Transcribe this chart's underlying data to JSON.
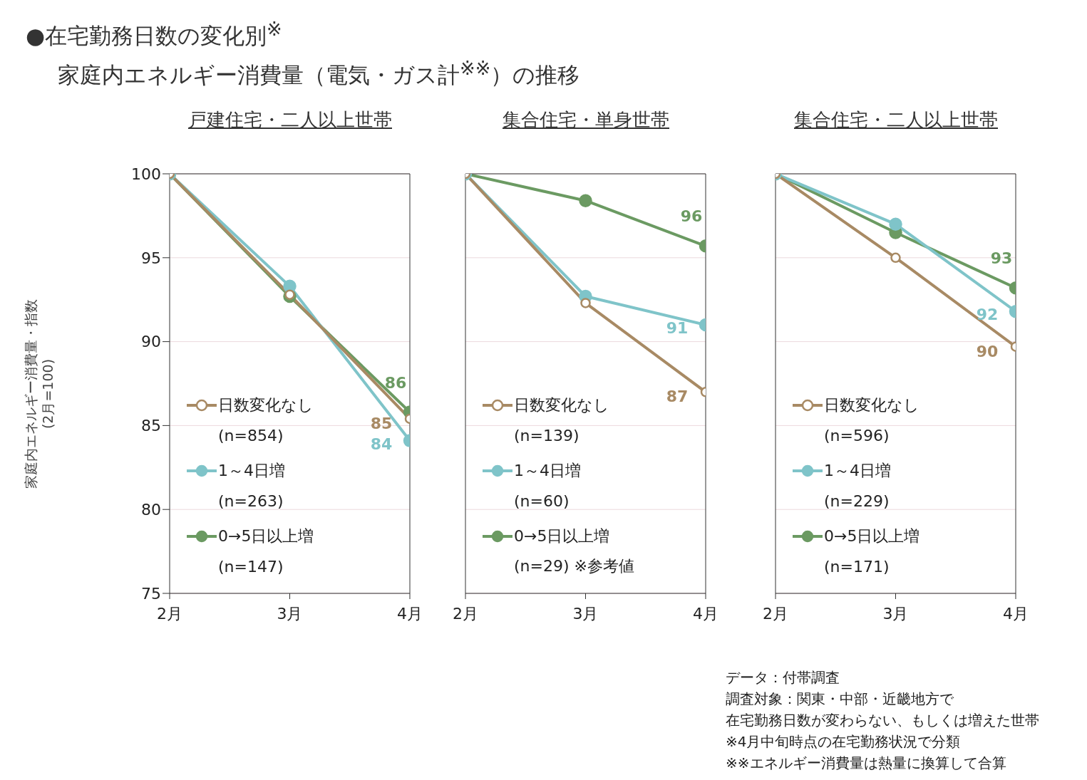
{
  "chart_data": [
    {
      "type": "line",
      "title": "●在宅勤務日数の変化別$^{※}$\n家庭内エネルギー消費量（電気・ガス計$^{※※}$）の推移",
      "subtitle": "戸建住宅・二人以上世帯",
      "ylabel": "家庭内エネルギー消費量・指数\n(2月=100)",
      "categories": [
        "2月",
        "3月",
        "4月"
      ],
      "ylim": [
        75,
        100
      ],
      "yticks": [
        75,
        80,
        85,
        90,
        95,
        100
      ],
      "grid": "y",
      "legend": "bottom left",
      "marker": "circle",
      "line_style": "solid",
      "series": [
        {
          "name": "日数変化なし\n(n=854)",
          "color": "#a88a64",
          "values": [
            100,
            92.8,
            85.4
          ],
          "value_labels": [
            null,
            null,
            "85"
          ]
        },
        {
          "name": "1～4日増\n(n=263)",
          "color": "#7fc4c9",
          "values": [
            100,
            93.3,
            84.1
          ],
          "value_labels": [
            null,
            null,
            "84"
          ]
        },
        {
          "name": "0→5日以上増\n(n=147)",
          "color": "#6b9a62",
          "values": [
            100,
            92.7,
            85.8
          ],
          "value_labels": [
            null,
            null,
            "86"
          ]
        }
      ]
    },
    {
      "type": "line",
      "subtitle": "集合住宅・単身世帯",
      "categories": [
        "2月",
        "3月",
        "4月"
      ],
      "ylim": [
        75,
        100
      ],
      "yticks": [
        75,
        80,
        85,
        90,
        95,
        100
      ],
      "tick_labels": "x",
      "grid": "y",
      "legend": "bottom left",
      "marker": "circle",
      "line_style": "solid",
      "series": [
        {
          "name": "日数変化なし\n(n=139)",
          "color": "#a88a64",
          "values": [
            100,
            92.3,
            87.0
          ],
          "value_labels": [
            null,
            null,
            "87"
          ]
        },
        {
          "name": "1～4日増\n(n=60)",
          "color": "#7fc4c9",
          "values": [
            100,
            92.7,
            91.0
          ],
          "value_labels": [
            null,
            null,
            "91"
          ]
        },
        {
          "name": "0→5日以上増\n(n=29) ※参考値",
          "color": "#6b9a62",
          "values": [
            100,
            98.4,
            95.7
          ],
          "value_labels": [
            null,
            null,
            "96"
          ]
        }
      ]
    },
    {
      "type": "line",
      "subtitle": "集合住宅・二人以上世帯",
      "categories": [
        "2月",
        "3月",
        "4月"
      ],
      "ylim": [
        75,
        100
      ],
      "yticks": [
        75,
        80,
        85,
        90,
        95,
        100
      ],
      "tick_labels": "x",
      "grid": "y",
      "legend": "bottom left",
      "marker": "circle",
      "line_style": "solid",
      "annotations": [
        "データ：付帯調査",
        "調査対象：関東・中部・近畿地方で",
        "在宅勤務日数が変わらない、もしくは増えた世帯",
        "※4月中旬時点の在宅勤務状況で分類",
        "※※エネルギー消費量は熱量に換算して合算"
      ],
      "series": [
        {
          "name": "日数変化なし\n(n=596)",
          "color": "#a88a64",
          "values": [
            100,
            95.0,
            89.7
          ],
          "value_labels": [
            null,
            null,
            "90"
          ]
        },
        {
          "name": "1～4日増\n(n=229)",
          "color": "#7fc4c9",
          "values": [
            100,
            97.0,
            91.8
          ],
          "value_labels": [
            null,
            null,
            "92"
          ]
        },
        {
          "name": "0→5日以上増\n(n=171)",
          "color": "#6b9a62",
          "values": [
            100,
            96.5,
            93.2
          ],
          "value_labels": [
            null,
            null,
            "93"
          ]
        }
      ]
    }
  ]
}
